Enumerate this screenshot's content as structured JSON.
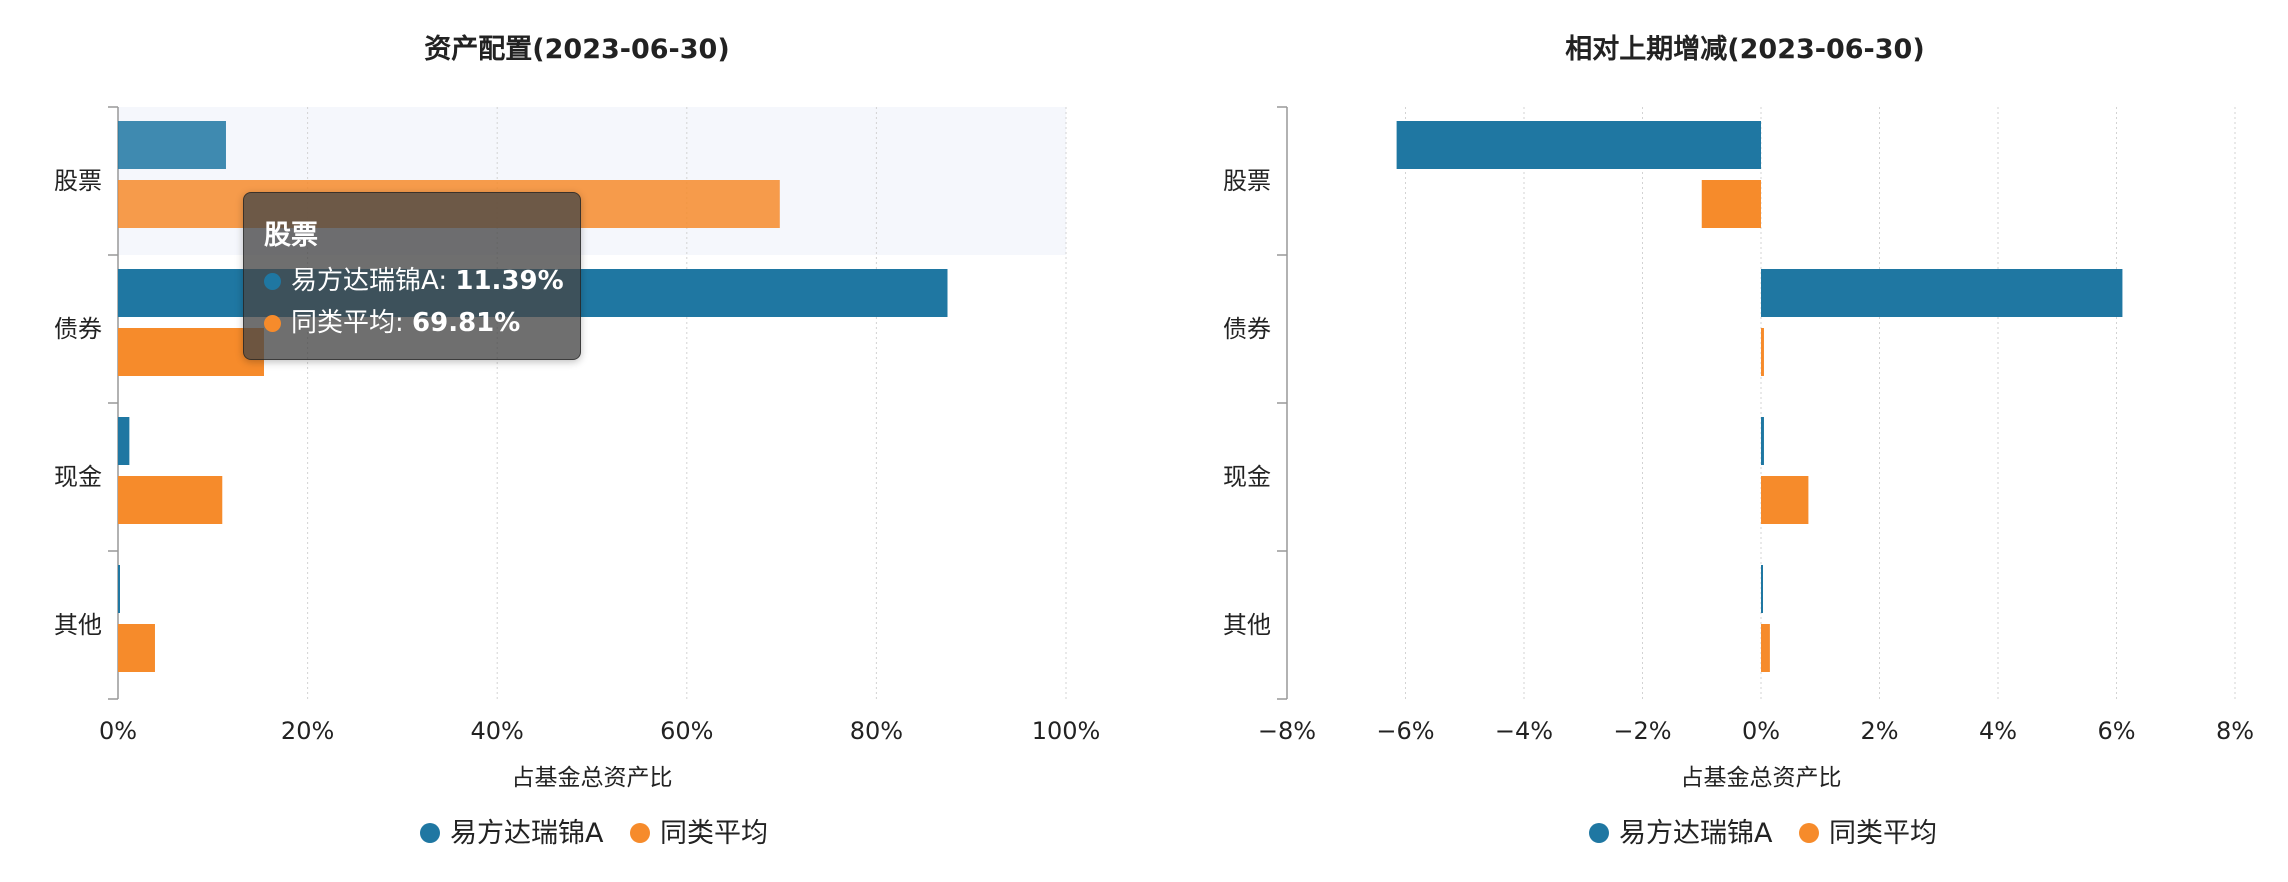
{
  "colors": {
    "fund": "#1f77a2",
    "avg": "#f68b2b"
  },
  "chart_data": [
    {
      "type": "bar",
      "orientation": "horizontal",
      "title": "资产配置(2023-06-30)",
      "xlabel": "占基金总资产比",
      "categories": [
        "股票",
        "债券",
        "现金",
        "其他"
      ],
      "xlim": [
        0,
        100
      ],
      "ticks": [
        "0%",
        "20%",
        "40%",
        "60%",
        "80%",
        "100%"
      ],
      "series": [
        {
          "name": "易方达瑞锦A",
          "values": [
            11.39,
            87.5,
            1.2,
            0.2
          ]
        },
        {
          "name": "同类平均",
          "values": [
            69.81,
            15.4,
            11.0,
            3.9
          ]
        }
      ],
      "highlighted_category": "股票",
      "legend": "bottom-center",
      "grid": true
    },
    {
      "type": "bar",
      "orientation": "horizontal",
      "title": "相对上期增减(2023-06-30)",
      "xlabel": "占基金总资产比",
      "categories": [
        "股票",
        "债券",
        "现金",
        "其他"
      ],
      "xlim": [
        -8,
        8
      ],
      "ticks": [
        "−8%",
        "−6%",
        "−4%",
        "−2%",
        "0%",
        "2%",
        "4%",
        "6%",
        "8%"
      ],
      "series": [
        {
          "name": "易方达瑞锦A",
          "values": [
            -6.15,
            6.1,
            0.05,
            0.02
          ]
        },
        {
          "name": "同类平均",
          "values": [
            -1.0,
            0.05,
            0.8,
            0.15
          ]
        }
      ],
      "legend": "bottom-center",
      "grid": true
    }
  ],
  "tooltip": {
    "title": "股票",
    "rows": [
      {
        "label": "易方达瑞锦A: ",
        "value": "11.39%"
      },
      {
        "label": "同类平均: ",
        "value": "69.81%"
      }
    ]
  }
}
